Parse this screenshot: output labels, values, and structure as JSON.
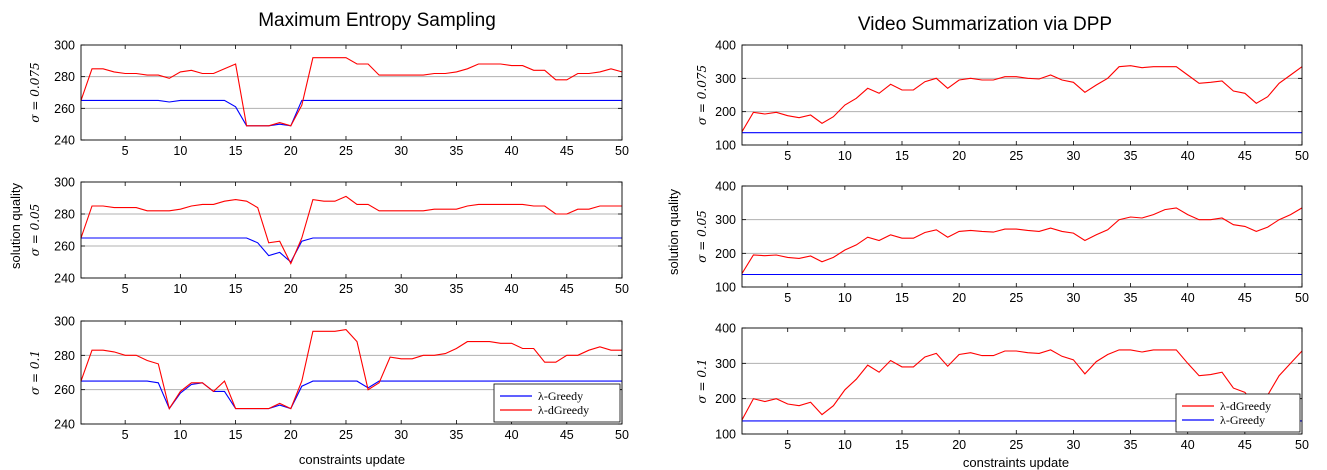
{
  "figure": {
    "left_title": "Maximum Entropy Sampling",
    "right_title": "Video Summarization via DPP",
    "left_ylabel": "solution quality",
    "right_ylabel": "solution quality",
    "left_xlabel": "constraints update",
    "right_xlabel": "constraints update"
  },
  "colors": {
    "greedy": "#0000ff",
    "dgreedy": "#ff0000",
    "grid": "#b0b0b0",
    "axis": "#000000"
  },
  "chart_data": [
    {
      "type": "line",
      "panel": "left",
      "row": 0,
      "row_label": "σ = 0.075",
      "x": [
        1,
        2,
        3,
        4,
        5,
        6,
        7,
        8,
        9,
        10,
        11,
        12,
        13,
        14,
        15,
        16,
        17,
        18,
        19,
        20,
        21,
        22,
        23,
        24,
        25,
        26,
        27,
        28,
        29,
        30,
        31,
        32,
        33,
        34,
        35,
        36,
        37,
        38,
        39,
        40,
        41,
        42,
        43,
        44,
        45,
        46,
        47,
        48,
        49,
        50
      ],
      "xlim": [
        1,
        50
      ],
      "ylim": [
        240,
        300
      ],
      "yticks": [
        240,
        260,
        280,
        300
      ],
      "xticks": [
        5,
        10,
        15,
        20,
        25,
        30,
        35,
        40,
        45,
        50
      ],
      "grid_y": [
        260,
        280
      ],
      "series": [
        {
          "name": "λ-Greedy",
          "color": "#0000ff",
          "values": [
            265,
            265,
            265,
            265,
            265,
            265,
            265,
            265,
            264,
            265,
            265,
            265,
            265,
            265,
            261,
            249,
            249,
            249,
            250,
            249,
            265,
            265,
            265,
            265,
            265,
            265,
            265,
            265,
            265,
            265,
            265,
            265,
            265,
            265,
            265,
            265,
            265,
            265,
            265,
            265,
            265,
            265,
            265,
            265,
            265,
            265,
            265,
            265,
            265,
            265
          ]
        },
        {
          "name": "λ-dGreedy",
          "color": "#ff0000",
          "values": [
            265,
            285,
            285,
            283,
            282,
            282,
            281,
            281,
            279,
            283,
            284,
            282,
            282,
            285,
            288,
            249,
            249,
            249,
            251,
            249,
            262,
            292,
            292,
            292,
            292,
            288,
            288,
            281,
            281,
            281,
            281,
            281,
            282,
            282,
            283,
            285,
            288,
            288,
            288,
            287,
            287,
            284,
            284,
            278,
            278,
            282,
            282,
            283,
            285,
            283
          ]
        }
      ]
    },
    {
      "type": "line",
      "panel": "left",
      "row": 1,
      "row_label": "σ = 0.05",
      "x": [
        1,
        2,
        3,
        4,
        5,
        6,
        7,
        8,
        9,
        10,
        11,
        12,
        13,
        14,
        15,
        16,
        17,
        18,
        19,
        20,
        21,
        22,
        23,
        24,
        25,
        26,
        27,
        28,
        29,
        30,
        31,
        32,
        33,
        34,
        35,
        36,
        37,
        38,
        39,
        40,
        41,
        42,
        43,
        44,
        45,
        46,
        47,
        48,
        49,
        50
      ],
      "xlim": [
        1,
        50
      ],
      "ylim": [
        240,
        300
      ],
      "yticks": [
        240,
        260,
        280,
        300
      ],
      "xticks": [
        5,
        10,
        15,
        20,
        25,
        30,
        35,
        40,
        45,
        50
      ],
      "grid_y": [
        260,
        280
      ],
      "series": [
        {
          "name": "λ-Greedy",
          "color": "#0000ff",
          "values": [
            265,
            265,
            265,
            265,
            265,
            265,
            265,
            265,
            265,
            265,
            265,
            265,
            265,
            265,
            265,
            265,
            262,
            254,
            256,
            250,
            263,
            265,
            265,
            265,
            265,
            265,
            265,
            265,
            265,
            265,
            265,
            265,
            265,
            265,
            265,
            265,
            265,
            265,
            265,
            265,
            265,
            265,
            265,
            265,
            265,
            265,
            265,
            265,
            265,
            265
          ]
        },
        {
          "name": "λ-dGreedy",
          "color": "#ff0000",
          "values": [
            265,
            285,
            285,
            284,
            284,
            284,
            282,
            282,
            282,
            283,
            285,
            286,
            286,
            288,
            289,
            288,
            284,
            262,
            263,
            249,
            265,
            289,
            288,
            288,
            291,
            286,
            286,
            282,
            282,
            282,
            282,
            282,
            283,
            283,
            283,
            285,
            286,
            286,
            286,
            286,
            286,
            285,
            285,
            280,
            280,
            283,
            283,
            285,
            285,
            285
          ]
        }
      ]
    },
    {
      "type": "line",
      "panel": "left",
      "row": 2,
      "row_label": "σ = 0.1",
      "x": [
        1,
        2,
        3,
        4,
        5,
        6,
        7,
        8,
        9,
        10,
        11,
        12,
        13,
        14,
        15,
        16,
        17,
        18,
        19,
        20,
        21,
        22,
        23,
        24,
        25,
        26,
        27,
        28,
        29,
        30,
        31,
        32,
        33,
        34,
        35,
        36,
        37,
        38,
        39,
        40,
        41,
        42,
        43,
        44,
        45,
        46,
        47,
        48,
        49,
        50
      ],
      "xlim": [
        1,
        50
      ],
      "ylim": [
        240,
        300
      ],
      "yticks": [
        240,
        260,
        280,
        300
      ],
      "xticks": [
        5,
        10,
        15,
        20,
        25,
        30,
        35,
        40,
        45,
        50
      ],
      "grid_y": [
        260,
        280
      ],
      "legend": {
        "entries": [
          "λ-Greedy",
          "λ-dGreedy"
        ],
        "placement": "bottom-right"
      },
      "series": [
        {
          "name": "λ-Greedy",
          "color": "#0000ff",
          "values": [
            265,
            265,
            265,
            265,
            265,
            265,
            265,
            264,
            249,
            258,
            263,
            264,
            259,
            259,
            249,
            249,
            249,
            249,
            251,
            249,
            262,
            265,
            265,
            265,
            265,
            265,
            261,
            265,
            265,
            265,
            265,
            265,
            265,
            265,
            265,
            265,
            265,
            265,
            265,
            265,
            265,
            265,
            265,
            265,
            265,
            265,
            265,
            265,
            265,
            265
          ]
        },
        {
          "name": "λ-dGreedy",
          "color": "#ff0000",
          "values": [
            265,
            283,
            283,
            282,
            280,
            280,
            277,
            275,
            249,
            259,
            264,
            264,
            259,
            265,
            249,
            249,
            249,
            249,
            252,
            249,
            265,
            294,
            294,
            294,
            295,
            288,
            260,
            264,
            279,
            278,
            278,
            280,
            280,
            281,
            284,
            288,
            288,
            288,
            287,
            287,
            284,
            284,
            276,
            276,
            280,
            280,
            283,
            285,
            283,
            283
          ]
        }
      ]
    },
    {
      "type": "line",
      "panel": "right",
      "row": 0,
      "row_label": "σ = 0.075",
      "x": [
        1,
        2,
        3,
        4,
        5,
        6,
        7,
        8,
        9,
        10,
        11,
        12,
        13,
        14,
        15,
        16,
        17,
        18,
        19,
        20,
        21,
        22,
        23,
        24,
        25,
        26,
        27,
        28,
        29,
        30,
        31,
        32,
        33,
        34,
        35,
        36,
        37,
        38,
        39,
        40,
        41,
        42,
        43,
        44,
        45,
        46,
        47,
        48,
        49,
        50
      ],
      "xlim": [
        1,
        50
      ],
      "ylim": [
        100,
        400
      ],
      "yticks": [
        100,
        200,
        300,
        400
      ],
      "xticks": [
        5,
        10,
        15,
        20,
        25,
        30,
        35,
        40,
        45,
        50
      ],
      "grid_y": [
        200,
        300
      ],
      "series": [
        {
          "name": "λ-Greedy",
          "color": "#0000ff",
          "values": [
            137,
            137,
            137,
            137,
            137,
            137,
            137,
            137,
            137,
            137,
            137,
            137,
            137,
            137,
            137,
            137,
            137,
            137,
            137,
            137,
            137,
            137,
            137,
            137,
            137,
            137,
            137,
            137,
            137,
            137,
            137,
            137,
            137,
            137,
            137,
            137,
            137,
            137,
            137,
            137,
            137,
            137,
            137,
            137,
            137,
            137,
            137,
            137,
            137,
            137
          ]
        },
        {
          "name": "λ-dGreedy",
          "color": "#ff0000",
          "values": [
            140,
            198,
            193,
            198,
            188,
            182,
            190,
            165,
            185,
            220,
            240,
            270,
            255,
            282,
            265,
            265,
            290,
            300,
            270,
            295,
            300,
            295,
            295,
            305,
            305,
            300,
            298,
            310,
            295,
            288,
            258,
            280,
            300,
            335,
            338,
            332,
            335,
            335,
            335,
            310,
            285,
            288,
            292,
            262,
            255,
            225,
            245,
            285,
            310,
            335
          ]
        }
      ]
    },
    {
      "type": "line",
      "panel": "right",
      "row": 1,
      "row_label": "σ = 0.05",
      "x": [
        1,
        2,
        3,
        4,
        5,
        6,
        7,
        8,
        9,
        10,
        11,
        12,
        13,
        14,
        15,
        16,
        17,
        18,
        19,
        20,
        21,
        22,
        23,
        24,
        25,
        26,
        27,
        28,
        29,
        30,
        31,
        32,
        33,
        34,
        35,
        36,
        37,
        38,
        39,
        40,
        41,
        42,
        43,
        44,
        45,
        46,
        47,
        48,
        49,
        50
      ],
      "xlim": [
        1,
        50
      ],
      "ylim": [
        100,
        400
      ],
      "yticks": [
        100,
        200,
        300,
        400
      ],
      "xticks": [
        5,
        10,
        15,
        20,
        25,
        30,
        35,
        40,
        45,
        50
      ],
      "grid_y": [
        200,
        300
      ],
      "series": [
        {
          "name": "λ-Greedy",
          "color": "#0000ff",
          "values": [
            137,
            137,
            137,
            137,
            137,
            137,
            137,
            137,
            137,
            137,
            137,
            137,
            137,
            137,
            137,
            137,
            137,
            137,
            137,
            137,
            137,
            137,
            137,
            137,
            137,
            137,
            137,
            137,
            137,
            137,
            137,
            137,
            137,
            137,
            137,
            137,
            137,
            137,
            137,
            137,
            137,
            137,
            137,
            137,
            137,
            137,
            137,
            137,
            137,
            137
          ]
        },
        {
          "name": "λ-dGreedy",
          "color": "#ff0000",
          "values": [
            140,
            195,
            193,
            195,
            188,
            185,
            192,
            175,
            188,
            210,
            225,
            248,
            238,
            255,
            245,
            245,
            262,
            270,
            248,
            265,
            268,
            265,
            263,
            272,
            272,
            268,
            265,
            275,
            265,
            260,
            238,
            255,
            270,
            300,
            308,
            305,
            315,
            330,
            335,
            315,
            300,
            300,
            305,
            285,
            280,
            265,
            278,
            300,
            315,
            335
          ]
        }
      ]
    },
    {
      "type": "line",
      "panel": "right",
      "row": 2,
      "row_label": "σ = 0.1",
      "x": [
        1,
        2,
        3,
        4,
        5,
        6,
        7,
        8,
        9,
        10,
        11,
        12,
        13,
        14,
        15,
        16,
        17,
        18,
        19,
        20,
        21,
        22,
        23,
        24,
        25,
        26,
        27,
        28,
        29,
        30,
        31,
        32,
        33,
        34,
        35,
        36,
        37,
        38,
        39,
        40,
        41,
        42,
        43,
        44,
        45,
        46,
        47,
        48,
        49,
        50
      ],
      "xlim": [
        1,
        50
      ],
      "ylim": [
        100,
        400
      ],
      "yticks": [
        100,
        200,
        300,
        400
      ],
      "xticks": [
        5,
        10,
        15,
        20,
        25,
        30,
        35,
        40,
        45,
        50
      ],
      "grid_y": [
        200,
        300
      ],
      "legend": {
        "entries": [
          "λ-dGreedy",
          "λ-Greedy"
        ],
        "placement": "bottom-right"
      },
      "series": [
        {
          "name": "λ-Greedy",
          "color": "#0000ff",
          "values": [
            137,
            137,
            137,
            137,
            137,
            137,
            137,
            137,
            137,
            137,
            137,
            137,
            137,
            137,
            137,
            137,
            137,
            137,
            137,
            137,
            137,
            137,
            137,
            137,
            137,
            137,
            137,
            137,
            137,
            137,
            137,
            137,
            137,
            137,
            137,
            137,
            137,
            137,
            137,
            137,
            137,
            137,
            137,
            137,
            137,
            137,
            137,
            137,
            137,
            137
          ]
        },
        {
          "name": "λ-dGreedy",
          "color": "#ff0000",
          "values": [
            140,
            200,
            192,
            200,
            185,
            180,
            190,
            155,
            180,
            225,
            255,
            295,
            275,
            308,
            290,
            290,
            318,
            328,
            292,
            325,
            330,
            322,
            322,
            335,
            335,
            330,
            328,
            338,
            320,
            310,
            270,
            305,
            325,
            338,
            338,
            332,
            338,
            338,
            338,
            300,
            265,
            268,
            275,
            230,
            218,
            175,
            210,
            265,
            300,
            335
          ]
        }
      ]
    }
  ]
}
